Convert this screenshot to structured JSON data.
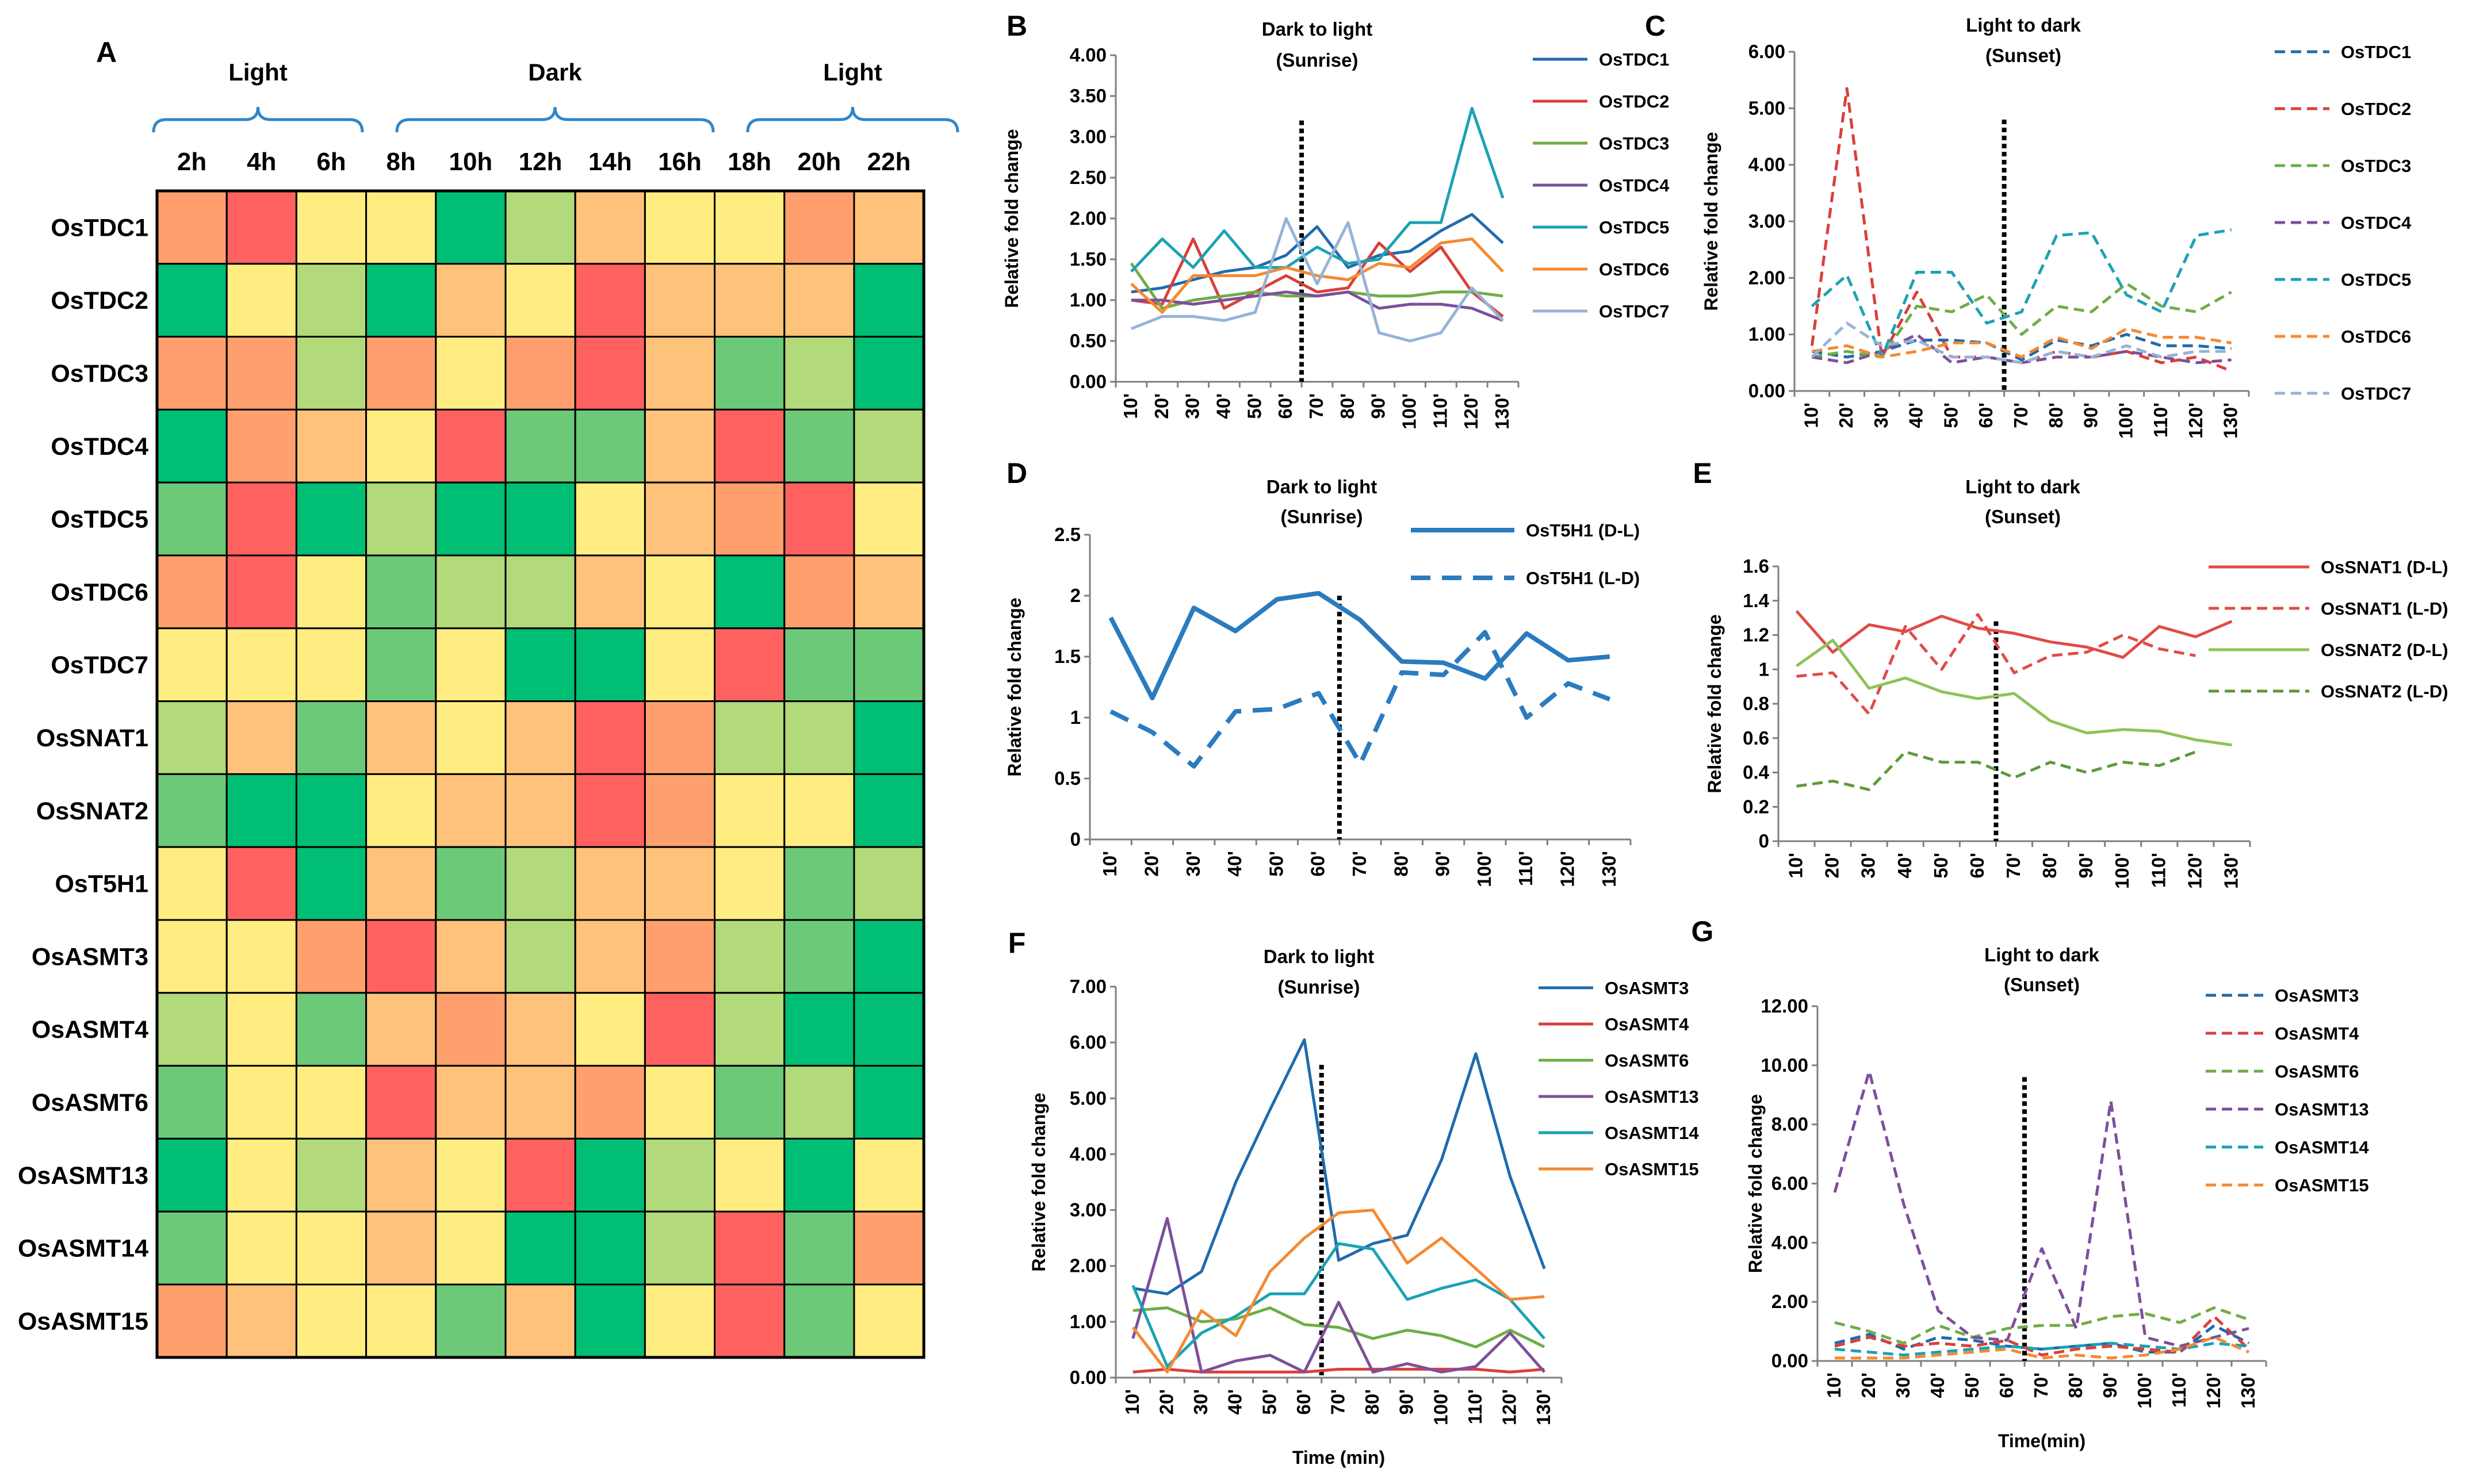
{
  "heatmap": {
    "panel": "A",
    "groups": [
      "Light",
      "Dark",
      "Light"
    ],
    "columns": [
      "2h",
      "4h",
      "6h",
      "8h",
      "10h",
      "12h",
      "14h",
      "16h",
      "18h",
      "20h",
      "22h"
    ],
    "rows": [
      "OsTDC1",
      "OsTDC2",
      "OsTDC3",
      "OsTDC4",
      "OsTDC5",
      "OsTDC6",
      "OsTDC7",
      "OsSNAT1",
      "OsSNAT2",
      "OsT5H1",
      "OsASMT3",
      "OsASMT4",
      "OsASMT6",
      "OsASMT13",
      "OsASMT14",
      "OsASMT15"
    ],
    "colors": {
      "red": "#FF6160",
      "orange": "#FF9F6E",
      "lightOrange": "#FFC27A",
      "yellow": "#FFED82",
      "paleGreen": "#B2D97A",
      "green": "#6CC978",
      "darkGreen": "#00BE74"
    },
    "scale": [
      "red",
      "orange",
      "lightOrange",
      "yellow",
      "paleGreen",
      "green",
      "darkGreen"
    ],
    "levels": [
      [
        1,
        0,
        3,
        3,
        6,
        4,
        2,
        3,
        3,
        1,
        2
      ],
      [
        6,
        3,
        4,
        6,
        2,
        3,
        0,
        2,
        2,
        2,
        6
      ],
      [
        1,
        1,
        4,
        1,
        3,
        1,
        0,
        2,
        5,
        4,
        6
      ],
      [
        6,
        1,
        2,
        3,
        0,
        5,
        5,
        2,
        0,
        5,
        4
      ],
      [
        5,
        0,
        6,
        4,
        6,
        6,
        3,
        2,
        1,
        0,
        3
      ],
      [
        1,
        0,
        3,
        5,
        4,
        4,
        2,
        3,
        6,
        1,
        2
      ],
      [
        3,
        3,
        3,
        5,
        3,
        6,
        6,
        3,
        0,
        5,
        5
      ],
      [
        4,
        2,
        5,
        2,
        3,
        2,
        0,
        1,
        4,
        4,
        6
      ],
      [
        5,
        6,
        6,
        3,
        2,
        2,
        0,
        1,
        3,
        3,
        6
      ],
      [
        3,
        0,
        6,
        2,
        5,
        4,
        2,
        2,
        3,
        5,
        4
      ],
      [
        3,
        3,
        1,
        0,
        2,
        4,
        2,
        1,
        4,
        5,
        6
      ],
      [
        4,
        3,
        5,
        2,
        1,
        2,
        3,
        0,
        4,
        6,
        6
      ],
      [
        5,
        3,
        3,
        0,
        2,
        2,
        1,
        3,
        5,
        4,
        6
      ],
      [
        6,
        3,
        4,
        2,
        3,
        0,
        6,
        4,
        3,
        6,
        3
      ],
      [
        5,
        3,
        3,
        2,
        3,
        6,
        6,
        4,
        0,
        5,
        1
      ],
      [
        1,
        2,
        3,
        3,
        5,
        2,
        6,
        3,
        0,
        5,
        3
      ]
    ]
  },
  "chart_data": [
    {
      "panel": "B",
      "type": "line",
      "title": [
        "Dark to light",
        "(Sunrise)"
      ],
      "xlabel": "",
      "ylabel": "Relative fold change",
      "categories": [
        "10'",
        "20'",
        "30'",
        "40'",
        "50'",
        "60'",
        "70'",
        "80'",
        "90'",
        "100'",
        "110'",
        "120'",
        "130'"
      ],
      "ylim": [
        0,
        4
      ],
      "yticks": [
        "0.00",
        "0.50",
        "1.00",
        "1.50",
        "2.00",
        "2.50",
        "3.00",
        "3.50",
        "4.00"
      ],
      "divider_after": 6,
      "series": [
        {
          "name": "OsTDC1",
          "color": "#1F6BAD",
          "dash": false,
          "values": [
            1.1,
            1.15,
            1.25,
            1.35,
            1.4,
            1.55,
            1.9,
            1.4,
            1.55,
            1.6,
            1.85,
            2.05,
            1.7
          ]
        },
        {
          "name": "OsTDC2",
          "color": "#D9403B",
          "dash": false,
          "values": [
            1.0,
            0.95,
            1.75,
            0.9,
            1.1,
            1.3,
            1.1,
            1.15,
            1.7,
            1.35,
            1.65,
            1.1,
            0.8
          ]
        },
        {
          "name": "OsTDC3",
          "color": "#6FAD46",
          "dash": false,
          "values": [
            1.45,
            0.9,
            1.0,
            1.05,
            1.1,
            1.05,
            1.05,
            1.1,
            1.05,
            1.05,
            1.1,
            1.1,
            1.05
          ]
        },
        {
          "name": "OsTDC4",
          "color": "#7D4F9B",
          "dash": false,
          "values": [
            1.0,
            1.0,
            0.95,
            1.0,
            1.05,
            1.1,
            1.05,
            1.1,
            0.9,
            0.95,
            0.95,
            0.9,
            0.75
          ]
        },
        {
          "name": "OsTDC5",
          "color": "#1BA2B4",
          "dash": false,
          "values": [
            1.35,
            1.75,
            1.4,
            1.85,
            1.4,
            1.4,
            1.65,
            1.45,
            1.5,
            1.95,
            1.95,
            3.35,
            2.25
          ]
        },
        {
          "name": "OsTDC6",
          "color": "#F58931",
          "dash": false,
          "values": [
            1.2,
            0.85,
            1.3,
            1.3,
            1.3,
            1.4,
            1.3,
            1.25,
            1.45,
            1.4,
            1.7,
            1.75,
            1.35
          ]
        },
        {
          "name": "OsTDC7",
          "color": "#95B3D7",
          "dash": false,
          "values": [
            0.65,
            0.8,
            0.8,
            0.75,
            0.85,
            2.0,
            1.2,
            1.95,
            0.6,
            0.5,
            0.6,
            1.15,
            0.75
          ]
        }
      ]
    },
    {
      "panel": "C",
      "type": "line",
      "title": [
        "Light to dark",
        "(Sunset)"
      ],
      "xlabel": "",
      "ylabel": "Relative fold change",
      "categories": [
        "10'",
        "20'",
        "30'",
        "40'",
        "50'",
        "60'",
        "70'",
        "80'",
        "90'",
        "100'",
        "110'",
        "120'",
        "130'"
      ],
      "ylim": [
        0,
        6
      ],
      "yticks": [
        "0.00",
        "1.00",
        "2.00",
        "3.00",
        "4.00",
        "5.00",
        "6.00"
      ],
      "divider_after": 6,
      "series": [
        {
          "name": "OsTDC1",
          "color": "#1F6BAD",
          "dash": true,
          "values": [
            0.7,
            0.6,
            0.7,
            0.9,
            0.9,
            0.85,
            0.55,
            0.9,
            0.8,
            1.0,
            0.8,
            0.8,
            0.75
          ]
        },
        {
          "name": "OsTDC2",
          "color": "#D9403B",
          "dash": true,
          "values": [
            0.8,
            5.35,
            0.6,
            1.75,
            0.6,
            0.6,
            0.5,
            0.7,
            0.6,
            0.7,
            0.5,
            0.6,
            0.35
          ]
        },
        {
          "name": "OsTDC3",
          "color": "#6FAD46",
          "dash": true,
          "values": [
            0.6,
            0.7,
            0.6,
            1.5,
            1.4,
            1.7,
            1.0,
            1.5,
            1.4,
            1.9,
            1.5,
            1.4,
            1.75
          ]
        },
        {
          "name": "OsTDC4",
          "color": "#7D4F9B",
          "dash": true,
          "values": [
            0.6,
            0.5,
            0.7,
            1.0,
            0.5,
            0.6,
            0.5,
            0.6,
            0.6,
            0.7,
            0.6,
            0.5,
            0.55
          ]
        },
        {
          "name": "OsTDC5",
          "color": "#1BA2B4",
          "dash": true,
          "values": [
            1.5,
            2.05,
            0.6,
            2.1,
            2.1,
            1.2,
            1.4,
            2.75,
            2.8,
            1.7,
            1.4,
            2.75,
            2.85
          ]
        },
        {
          "name": "OsTDC6",
          "color": "#F58931",
          "dash": true,
          "values": [
            0.7,
            0.8,
            0.6,
            0.7,
            0.85,
            0.85,
            0.6,
            0.95,
            0.75,
            1.1,
            0.95,
            0.95,
            0.85
          ]
        },
        {
          "name": "OsTDC7",
          "color": "#95B3D7",
          "dash": true,
          "values": [
            0.6,
            1.2,
            0.8,
            0.9,
            0.6,
            0.6,
            0.5,
            0.7,
            0.6,
            0.8,
            0.6,
            0.7,
            0.7
          ]
        }
      ]
    },
    {
      "panel": "D",
      "type": "line",
      "title": [
        "Dark to light",
        "(Sunrise)"
      ],
      "xlabel": "",
      "ylabel": "Relative fold change",
      "categories": [
        "10'",
        "20'",
        "30'",
        "40'",
        "50'",
        "60'",
        "70'",
        "80'",
        "90'",
        "100'",
        "110'",
        "120'",
        "130'"
      ],
      "ylim": [
        0,
        2.5
      ],
      "yticks": [
        "0",
        "0.5",
        "1",
        "1.5",
        "2",
        "2.5"
      ],
      "divider_after": 6,
      "series": [
        {
          "name": "OsT5H1 (D-L)",
          "color": "#2B7BBF",
          "dash": false,
          "values": [
            1.82,
            1.16,
            1.9,
            1.71,
            1.97,
            2.02,
            1.8,
            1.46,
            1.45,
            1.32,
            1.69,
            1.47,
            1.5
          ]
        },
        {
          "name": "OsT5H1 (L-D)",
          "color": "#2B7BBF",
          "dash": true,
          "values": [
            1.05,
            0.88,
            0.6,
            1.05,
            1.07,
            1.2,
            0.62,
            1.37,
            1.35,
            1.7,
            1.0,
            1.28,
            1.15
          ]
        }
      ]
    },
    {
      "panel": "E",
      "type": "line",
      "title": [
        "Light to dark",
        "(Sunset)"
      ],
      "xlabel": "",
      "ylabel": "Relative fold change",
      "categories": [
        "10'",
        "20'",
        "30'",
        "40'",
        "50'",
        "60'",
        "70'",
        "80'",
        "90'",
        "100'",
        "110'",
        "120'",
        "130'"
      ],
      "ylim": [
        0,
        1.6
      ],
      "yticks": [
        "0",
        "0.2",
        "0.4",
        "0.6",
        "0.8",
        "1",
        "1.2",
        "1.4",
        "1.6"
      ],
      "divider_after": 6,
      "series": [
        {
          "name": "OsSNAT1 (D-L)",
          "color": "#E14B47",
          "dash": false,
          "values": [
            1.34,
            1.1,
            1.26,
            1.22,
            1.31,
            1.24,
            1.21,
            1.16,
            1.13,
            1.07,
            1.25,
            1.19,
            1.28
          ]
        },
        {
          "name": "OsSNAT1 (L-D)",
          "color": "#E14B47",
          "dash": true,
          "values": [
            0.96,
            0.98,
            0.74,
            1.25,
            1.0,
            1.32,
            0.98,
            1.08,
            1.1,
            1.2,
            1.12,
            1.08,
            null
          ]
        },
        {
          "name": "OsSNAT2 (D-L)",
          "color": "#8DC357",
          "dash": false,
          "values": [
            1.02,
            1.17,
            0.89,
            0.95,
            0.87,
            0.83,
            0.86,
            0.7,
            0.63,
            0.65,
            0.64,
            0.59,
            0.56
          ]
        },
        {
          "name": "OsSNAT2 (L-D)",
          "color": "#5E9A3A",
          "dash": true,
          "values": [
            0.32,
            0.35,
            0.3,
            0.52,
            0.46,
            0.46,
            0.37,
            0.46,
            0.4,
            0.46,
            0.44,
            0.52,
            null
          ]
        }
      ]
    },
    {
      "panel": "F",
      "type": "line",
      "title": [
        "Dark to light",
        "(Sunrise)"
      ],
      "xlabel": "Time (min)",
      "ylabel": "Relative fold change",
      "categories": [
        "10'",
        "20'",
        "30'",
        "40'",
        "50'",
        "60'",
        "70'",
        "80'",
        "90'",
        "100'",
        "110'",
        "120'",
        "130'"
      ],
      "ylim": [
        0,
        7
      ],
      "yticks": [
        "0.00",
        "1.00",
        "2.00",
        "3.00",
        "4.00",
        "5.00",
        "6.00",
        "7.00"
      ],
      "divider_after": 6,
      "series": [
        {
          "name": "OsASMT3",
          "color": "#1F6BAD",
          "dash": false,
          "values": [
            1.6,
            1.5,
            1.9,
            3.5,
            4.8,
            6.05,
            2.1,
            2.4,
            2.55,
            3.9,
            5.8,
            3.6,
            1.95
          ]
        },
        {
          "name": "OsASMT4",
          "color": "#D9403B",
          "dash": false,
          "values": [
            0.1,
            0.15,
            0.1,
            0.1,
            0.1,
            0.1,
            0.15,
            0.15,
            0.15,
            0.15,
            0.15,
            0.1,
            0.15
          ]
        },
        {
          "name": "OsASMT6",
          "color": "#6FAD46",
          "dash": false,
          "values": [
            1.2,
            1.25,
            1.0,
            1.05,
            1.25,
            0.95,
            0.9,
            0.7,
            0.85,
            0.75,
            0.55,
            0.85,
            0.55
          ]
        },
        {
          "name": "OsASMT13",
          "color": "#7D4F9B",
          "dash": false,
          "values": [
            0.7,
            2.85,
            0.1,
            0.3,
            0.4,
            0.1,
            1.35,
            0.1,
            0.25,
            0.1,
            0.2,
            0.8,
            0.1
          ]
        },
        {
          "name": "OsASMT14",
          "color": "#1BA2B4",
          "dash": false,
          "values": [
            1.65,
            0.2,
            0.8,
            1.1,
            1.5,
            1.5,
            2.4,
            2.3,
            1.4,
            1.6,
            1.75,
            1.4,
            0.7
          ]
        },
        {
          "name": "OsASMT15",
          "color": "#F58931",
          "dash": false,
          "values": [
            0.9,
            0.1,
            1.2,
            0.75,
            1.9,
            2.5,
            2.95,
            3.0,
            2.05,
            2.5,
            1.95,
            1.4,
            1.45
          ]
        }
      ]
    },
    {
      "panel": "G",
      "type": "line",
      "title": [
        "Light to dark",
        "(Sunset)"
      ],
      "xlabel": "Time(min)",
      "ylabel": "Relative fold change",
      "categories": [
        "10'",
        "20'",
        "30'",
        "40'",
        "50'",
        "60'",
        "70'",
        "80'",
        "90'",
        "100'",
        "110'",
        "120'",
        "130'"
      ],
      "ylim": [
        0,
        12
      ],
      "yticks": [
        "0.00",
        "2.00",
        "4.00",
        "6.00",
        "8.00",
        "10.00",
        "12.00"
      ],
      "divider_after": 6,
      "series": [
        {
          "name": "OsASMT3",
          "color": "#1F6BAD",
          "dash": true,
          "values": [
            0.6,
            0.9,
            0.4,
            0.8,
            0.7,
            0.5,
            0.4,
            0.5,
            0.6,
            0.3,
            0.3,
            1.2,
            0.6
          ]
        },
        {
          "name": "OsASMT4",
          "color": "#D9403B",
          "dash": true,
          "values": [
            0.5,
            0.8,
            0.5,
            0.6,
            0.5,
            0.7,
            0.2,
            0.4,
            0.5,
            0.4,
            0.3,
            1.5,
            0.4
          ]
        },
        {
          "name": "OsASMT6",
          "color": "#6FAD46",
          "dash": true,
          "values": [
            1.3,
            1.0,
            0.6,
            1.2,
            0.8,
            1.1,
            1.2,
            1.2,
            1.5,
            1.6,
            1.3,
            1.8,
            1.4
          ]
        },
        {
          "name": "OsASMT13",
          "color": "#7D4F9B",
          "dash": true,
          "values": [
            5.7,
            9.8,
            5.3,
            1.7,
            0.8,
            0.7,
            3.8,
            1.1,
            8.8,
            0.8,
            0.5,
            0.8,
            1.1
          ]
        },
        {
          "name": "OsASMT14",
          "color": "#1BA2B4",
          "dash": true,
          "values": [
            0.4,
            0.3,
            0.2,
            0.3,
            0.4,
            0.5,
            0.4,
            0.5,
            0.6,
            0.5,
            0.4,
            0.6,
            0.5
          ]
        },
        {
          "name": "OsASMT15",
          "color": "#F58931",
          "dash": true,
          "values": [
            0.1,
            0.1,
            0.1,
            0.2,
            0.3,
            0.4,
            0.1,
            0.2,
            0.1,
            0.2,
            0.4,
            0.8,
            0.3
          ]
        }
      ]
    }
  ]
}
